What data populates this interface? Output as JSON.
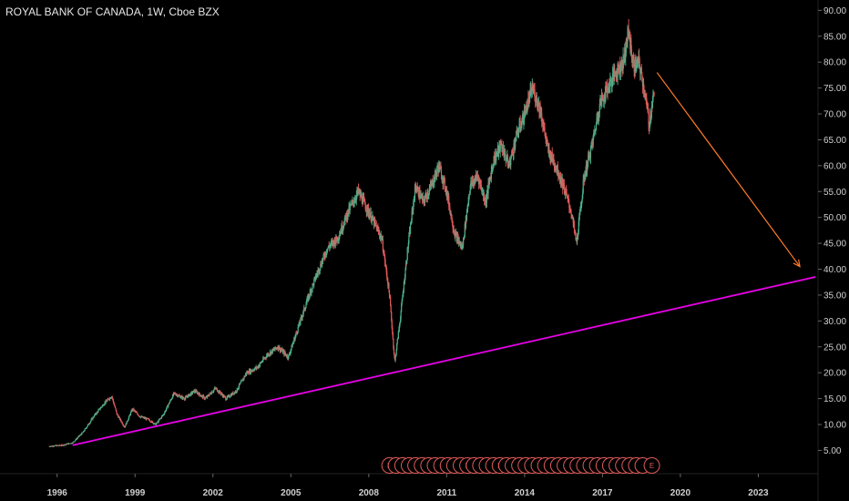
{
  "header": {
    "title": "ROYAL BANK OF CANADA, 1W, Cboe BZX"
  },
  "colors": {
    "background": "#000000",
    "up": "#4caf8a",
    "down": "#e05a5a",
    "trendline": "#e600e6",
    "arrow": "#ff7a2a",
    "earnings": "#e05a5a",
    "axis_text": "#cfcfcf"
  },
  "chart_data": {
    "type": "line",
    "title": "ROYAL BANK OF CANADA, 1W, Cboe BZX",
    "xlabel": "",
    "ylabel": "",
    "xlim": [
      1993.8,
      2025.3
    ],
    "ylim": [
      0.5,
      92
    ],
    "y_ticks": [
      "5.00",
      "10.00",
      "15.00",
      "20.00",
      "25.00",
      "30.00",
      "35.00",
      "40.00",
      "45.00",
      "50.00",
      "55.00",
      "60.00",
      "65.00",
      "70.00",
      "75.00",
      "80.00",
      "85.00",
      "90.00"
    ],
    "x_ticks": [
      "1996",
      "1999",
      "2002",
      "2005",
      "2008",
      "2011",
      "2014",
      "2017",
      "2020",
      "2023"
    ],
    "legend": "none",
    "grid": false,
    "price_series": {
      "name": "",
      "x": [
        1995.7,
        1996.2,
        1996.6,
        1997.0,
        1997.4,
        1997.8,
        1998.1,
        1998.3,
        1998.6,
        1998.9,
        1999.2,
        1999.5,
        1999.8,
        2000.1,
        2000.5,
        2000.9,
        2001.3,
        2001.7,
        2002.1,
        2002.5,
        2002.9,
        2003.3,
        2003.7,
        2004.1,
        2004.5,
        2004.9,
        2005.3,
        2005.7,
        2006.0,
        2006.4,
        2006.8,
        2007.2,
        2007.6,
        2007.9,
        2008.2,
        2008.5,
        2008.8,
        2009.0,
        2009.2,
        2009.5,
        2009.8,
        2010.1,
        2010.4,
        2010.7,
        2011.0,
        2011.3,
        2011.6,
        2011.9,
        2012.2,
        2012.5,
        2012.8,
        2013.1,
        2013.4,
        2013.7,
        2014.0,
        2014.3,
        2014.6,
        2014.9,
        2015.2,
        2015.5,
        2015.8,
        2016.0,
        2016.3,
        2016.6,
        2016.9,
        2017.2,
        2017.5,
        2017.8,
        2018.0,
        2018.2,
        2018.4,
        2018.6,
        2018.8,
        2019.0
      ],
      "values": [
        5.8,
        6.0,
        6.5,
        8.5,
        11.5,
        14.0,
        15.5,
        12.0,
        9.5,
        13.0,
        11.5,
        11.0,
        10.0,
        12.0,
        16.0,
        15.0,
        16.5,
        15.0,
        17.0,
        15.0,
        16.5,
        20.0,
        21.0,
        23.5,
        25.0,
        23.0,
        29.0,
        35.0,
        39.0,
        44.0,
        46.0,
        51.0,
        55.0,
        52.0,
        49.0,
        46.0,
        35.0,
        22.0,
        30.0,
        44.0,
        56.0,
        53.0,
        56.0,
        60.0,
        55.0,
        47.0,
        44.0,
        56.0,
        58.0,
        53.0,
        61.0,
        64.0,
        60.0,
        66.0,
        70.0,
        75.0,
        71.0,
        63.0,
        60.0,
        56.0,
        51.0,
        45.0,
        58.0,
        64.0,
        72.0,
        75.0,
        78.0,
        80.0,
        86.0,
        79.0,
        80.0,
        75.0,
        68.0,
        75.0
      ]
    },
    "trendline": {
      "x": [
        1996.6,
        2025.2
      ],
      "values": [
        6.0,
        38.5
      ]
    },
    "projection_arrow": {
      "x": [
        2019.1,
        2024.6
      ],
      "values": [
        78.0,
        40.5
      ]
    },
    "earnings_markers": {
      "label": "E",
      "x": [
        2008.8,
        2009.05,
        2009.3,
        2009.55,
        2009.8,
        2010.05,
        2010.3,
        2010.55,
        2010.8,
        2011.05,
        2011.3,
        2011.55,
        2011.8,
        2012.05,
        2012.3,
        2012.55,
        2012.8,
        2013.05,
        2013.3,
        2013.55,
        2013.8,
        2014.05,
        2014.3,
        2014.55,
        2014.8,
        2015.05,
        2015.3,
        2015.55,
        2015.8,
        2016.05,
        2016.3,
        2016.55,
        2016.8,
        2017.05,
        2017.3,
        2017.55,
        2017.8,
        2018.05,
        2018.3,
        2018.55,
        2018.9
      ],
      "labeled": [
        true,
        false,
        false,
        false,
        false,
        false,
        false,
        false,
        false,
        false,
        false,
        false,
        true,
        false,
        false,
        false,
        false,
        true,
        false,
        false,
        false,
        false,
        false,
        false,
        false,
        false,
        false,
        false,
        false,
        false,
        false,
        false,
        false,
        false,
        false,
        false,
        false,
        false,
        false,
        false,
        true
      ]
    }
  }
}
